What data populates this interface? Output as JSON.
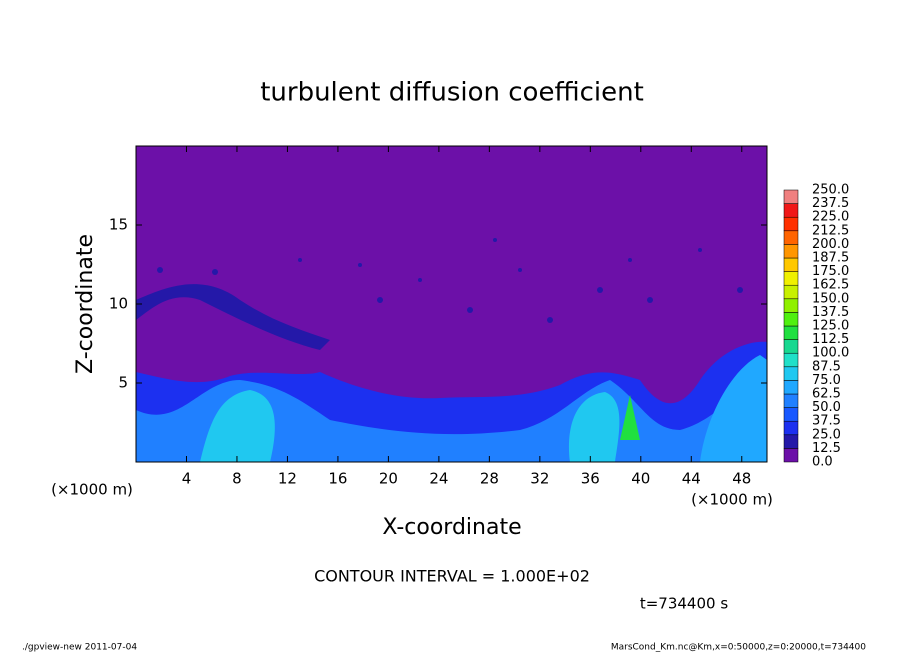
{
  "chart_data": {
    "type": "contour",
    "title": "turbulent diffusion coefficient",
    "xlabel": "X-coordinate",
    "ylabel": "Z-coordinate",
    "x_unit_left": "(×1000 m)",
    "x_unit_right": "(×1000 m)",
    "xlim": [
      0,
      50
    ],
    "xticks": [
      4,
      8,
      12,
      16,
      20,
      24,
      28,
      32,
      36,
      40,
      44,
      48
    ],
    "ylim": [
      0,
      20
    ],
    "yticks": [
      5,
      10,
      15
    ],
    "colorbar": {
      "levels": [
        {
          "value": 0,
          "label": "0.0"
        },
        {
          "value": 12.5,
          "label": "12.5"
        },
        {
          "value": 25,
          "label": "25.0"
        },
        {
          "value": 37.5,
          "label": "37.5"
        },
        {
          "value": 50,
          "label": "50.0"
        },
        {
          "value": 62.5,
          "label": "62.5"
        },
        {
          "value": 75,
          "label": "75.0"
        },
        {
          "value": 87.5,
          "label": "87.5"
        },
        {
          "value": 100,
          "label": "100.0"
        },
        {
          "value": 112.5,
          "label": "112.5"
        },
        {
          "value": 125,
          "label": "125.0"
        },
        {
          "value": 137.5,
          "label": "137.5"
        },
        {
          "value": 150,
          "label": "150.0"
        },
        {
          "value": 162.5,
          "label": "162.5"
        },
        {
          "value": 175,
          "label": "175.0"
        },
        {
          "value": 187.5,
          "label": "187.5"
        },
        {
          "value": 200,
          "label": "200.0"
        },
        {
          "value": 212.5,
          "label": "212.5"
        },
        {
          "value": 225,
          "label": "225.0"
        },
        {
          "value": 237.5,
          "label": "237.5"
        },
        {
          "value": 250,
          "label": "250.0"
        }
      ],
      "colors": [
        "#6c10a8",
        "#2418a8",
        "#1c30f0",
        "#1858ff",
        "#2080ff",
        "#20a8ff",
        "#20c8f0",
        "#20e0c8",
        "#18d890",
        "#20e040",
        "#50f010",
        "#90f000",
        "#c8f000",
        "#f0f000",
        "#ffc800",
        "#ff9600",
        "#ff6400",
        "#ff3000",
        "#f01818",
        "#f08080"
      ]
    },
    "contour_interval": "CONTOUR INTERVAL = 1.000E+02",
    "time_label": "t=734400 s",
    "footer_left": "./gpview-new  2011-07-04",
    "footer_right": "MarsCond_Km.nc@Km,x=0:50000,z=0:20000,t=734400"
  }
}
